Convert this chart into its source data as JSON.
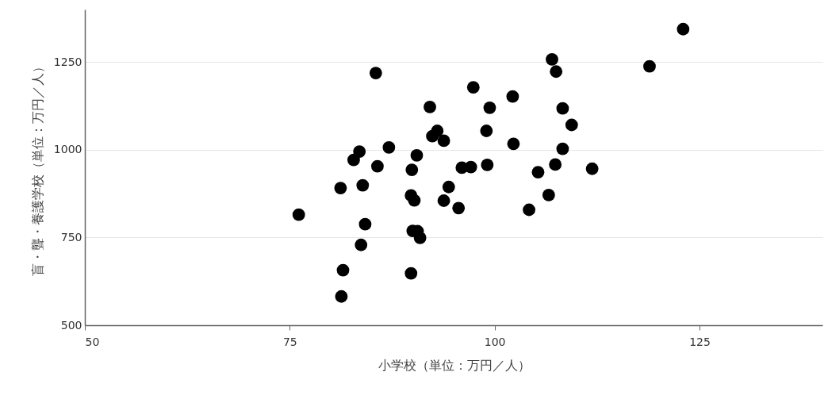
{
  "chart_data": {
    "type": "scatter",
    "xlabel": "小学校（単位：万円／人）",
    "ylabel": "盲・聾・養護学校（単位：万円／人）",
    "xlim": [
      50,
      140
    ],
    "xticks": [
      50,
      75,
      100,
      125
    ],
    "ylim": [
      500,
      1400
    ],
    "yticks": [
      500,
      750,
      1000,
      1250
    ],
    "grid": "y",
    "marker": "circle",
    "series": [
      {
        "color": "#000000",
        "x": [
          76.1,
          81.2,
          81.5,
          81.3,
          82.8,
          83.5,
          83.9,
          84.2,
          83.7,
          85.5,
          85.7,
          87.1,
          89.9,
          90.5,
          89.8,
          90.2,
          90.0,
          90.6,
          90.9,
          89.8,
          92.1,
          93.0,
          92.4,
          93.8,
          94.4,
          93.8,
          95.6,
          96.0,
          97.1,
          97.4,
          99.0,
          99.4,
          99.1,
          102.2,
          102.3,
          104.2,
          105.3,
          106.6,
          107.4,
          107.0,
          107.5,
          108.3,
          109.4,
          108.3,
          111.9,
          118.9,
          123.0
        ],
        "values": [
          815,
          891,
          657,
          582,
          971,
          995,
          899,
          788,
          729,
          1219,
          953,
          1007,
          943,
          984,
          870,
          856,
          769,
          768,
          749,
          648,
          1122,
          1054,
          1039,
          1026,
          894,
          855,
          834,
          949,
          951,
          1178,
          1054,
          1120,
          957,
          1152,
          1017,
          829,
          936,
          871,
          958,
          1258,
          1223,
          1118,
          1071,
          1003,
          946,
          1238,
          1344
        ]
      }
    ]
  }
}
